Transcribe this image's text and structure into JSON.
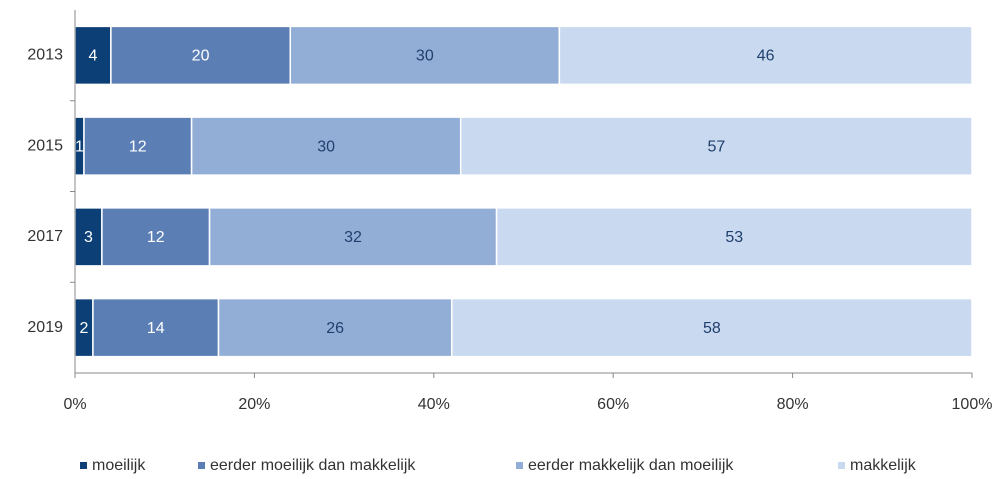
{
  "chart_data": {
    "type": "stacked_barh",
    "categories": [
      "2013",
      "2015",
      "2017",
      "2019"
    ],
    "series": [
      {
        "name": "moeilijk",
        "color": "#0b3f75",
        "label_color": "#ffffff",
        "values": [
          4,
          1,
          3,
          2
        ]
      },
      {
        "name": "eerder moeilijk dan makkelijk",
        "color": "#5b7fb5",
        "label_color": "#ffffff",
        "values": [
          20,
          12,
          12,
          14
        ]
      },
      {
        "name": "eerder makkelijk dan moeilijk",
        "color": "#93aed6",
        "label_color": "#1f3f6e",
        "values": [
          30,
          30,
          32,
          26
        ]
      },
      {
        "name": "makkelijk",
        "color": "#c9d9ef",
        "label_color": "#1f3f6e",
        "values": [
          46,
          57,
          53,
          58
        ]
      }
    ],
    "xlim": [
      0,
      100
    ],
    "xticks": [
      {
        "value": 0,
        "label": "0%"
      },
      {
        "value": 20,
        "label": "20%"
      },
      {
        "value": 40,
        "label": "40%"
      },
      {
        "value": 60,
        "label": "60%"
      },
      {
        "value": 80,
        "label": "80%"
      },
      {
        "value": 100,
        "label": "100%"
      }
    ],
    "legend": "bottom"
  }
}
